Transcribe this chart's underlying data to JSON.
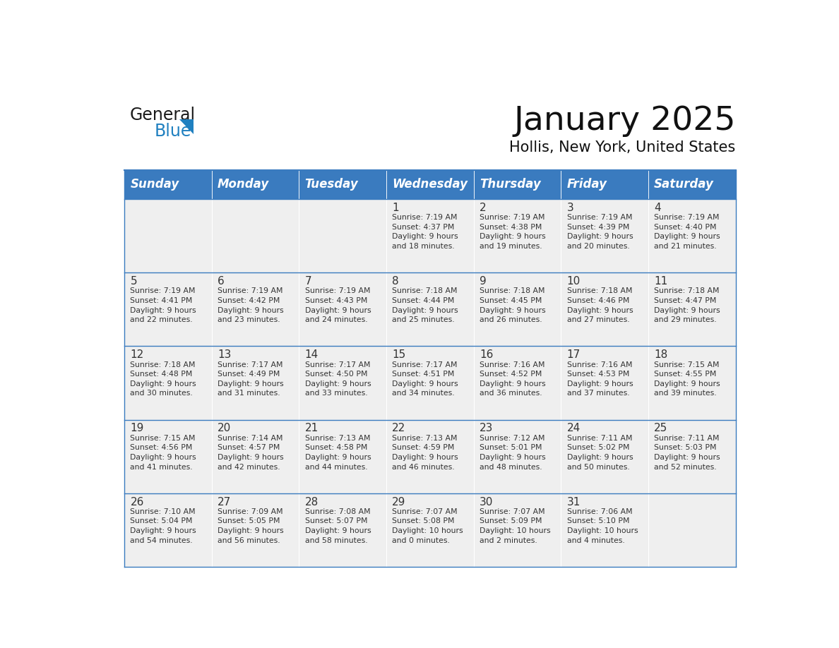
{
  "title": "January 2025",
  "subtitle": "Hollis, New York, United States",
  "header_bg": "#3a7bbf",
  "header_text_color": "#ffffff",
  "cell_bg_light": "#efefef",
  "text_color": "#333333",
  "line_color": "#3a7bbf",
  "days_of_week": [
    "Sunday",
    "Monday",
    "Tuesday",
    "Wednesday",
    "Thursday",
    "Friday",
    "Saturday"
  ],
  "calendar": [
    [
      {
        "day": "",
        "info": ""
      },
      {
        "day": "",
        "info": ""
      },
      {
        "day": "",
        "info": ""
      },
      {
        "day": "1",
        "info": "Sunrise: 7:19 AM\nSunset: 4:37 PM\nDaylight: 9 hours\nand 18 minutes."
      },
      {
        "day": "2",
        "info": "Sunrise: 7:19 AM\nSunset: 4:38 PM\nDaylight: 9 hours\nand 19 minutes."
      },
      {
        "day": "3",
        "info": "Sunrise: 7:19 AM\nSunset: 4:39 PM\nDaylight: 9 hours\nand 20 minutes."
      },
      {
        "day": "4",
        "info": "Sunrise: 7:19 AM\nSunset: 4:40 PM\nDaylight: 9 hours\nand 21 minutes."
      }
    ],
    [
      {
        "day": "5",
        "info": "Sunrise: 7:19 AM\nSunset: 4:41 PM\nDaylight: 9 hours\nand 22 minutes."
      },
      {
        "day": "6",
        "info": "Sunrise: 7:19 AM\nSunset: 4:42 PM\nDaylight: 9 hours\nand 23 minutes."
      },
      {
        "day": "7",
        "info": "Sunrise: 7:19 AM\nSunset: 4:43 PM\nDaylight: 9 hours\nand 24 minutes."
      },
      {
        "day": "8",
        "info": "Sunrise: 7:18 AM\nSunset: 4:44 PM\nDaylight: 9 hours\nand 25 minutes."
      },
      {
        "day": "9",
        "info": "Sunrise: 7:18 AM\nSunset: 4:45 PM\nDaylight: 9 hours\nand 26 minutes."
      },
      {
        "day": "10",
        "info": "Sunrise: 7:18 AM\nSunset: 4:46 PM\nDaylight: 9 hours\nand 27 minutes."
      },
      {
        "day": "11",
        "info": "Sunrise: 7:18 AM\nSunset: 4:47 PM\nDaylight: 9 hours\nand 29 minutes."
      }
    ],
    [
      {
        "day": "12",
        "info": "Sunrise: 7:18 AM\nSunset: 4:48 PM\nDaylight: 9 hours\nand 30 minutes."
      },
      {
        "day": "13",
        "info": "Sunrise: 7:17 AM\nSunset: 4:49 PM\nDaylight: 9 hours\nand 31 minutes."
      },
      {
        "day": "14",
        "info": "Sunrise: 7:17 AM\nSunset: 4:50 PM\nDaylight: 9 hours\nand 33 minutes."
      },
      {
        "day": "15",
        "info": "Sunrise: 7:17 AM\nSunset: 4:51 PM\nDaylight: 9 hours\nand 34 minutes."
      },
      {
        "day": "16",
        "info": "Sunrise: 7:16 AM\nSunset: 4:52 PM\nDaylight: 9 hours\nand 36 minutes."
      },
      {
        "day": "17",
        "info": "Sunrise: 7:16 AM\nSunset: 4:53 PM\nDaylight: 9 hours\nand 37 minutes."
      },
      {
        "day": "18",
        "info": "Sunrise: 7:15 AM\nSunset: 4:55 PM\nDaylight: 9 hours\nand 39 minutes."
      }
    ],
    [
      {
        "day": "19",
        "info": "Sunrise: 7:15 AM\nSunset: 4:56 PM\nDaylight: 9 hours\nand 41 minutes."
      },
      {
        "day": "20",
        "info": "Sunrise: 7:14 AM\nSunset: 4:57 PM\nDaylight: 9 hours\nand 42 minutes."
      },
      {
        "day": "21",
        "info": "Sunrise: 7:13 AM\nSunset: 4:58 PM\nDaylight: 9 hours\nand 44 minutes."
      },
      {
        "day": "22",
        "info": "Sunrise: 7:13 AM\nSunset: 4:59 PM\nDaylight: 9 hours\nand 46 minutes."
      },
      {
        "day": "23",
        "info": "Sunrise: 7:12 AM\nSunset: 5:01 PM\nDaylight: 9 hours\nand 48 minutes."
      },
      {
        "day": "24",
        "info": "Sunrise: 7:11 AM\nSunset: 5:02 PM\nDaylight: 9 hours\nand 50 minutes."
      },
      {
        "day": "25",
        "info": "Sunrise: 7:11 AM\nSunset: 5:03 PM\nDaylight: 9 hours\nand 52 minutes."
      }
    ],
    [
      {
        "day": "26",
        "info": "Sunrise: 7:10 AM\nSunset: 5:04 PM\nDaylight: 9 hours\nand 54 minutes."
      },
      {
        "day": "27",
        "info": "Sunrise: 7:09 AM\nSunset: 5:05 PM\nDaylight: 9 hours\nand 56 minutes."
      },
      {
        "day": "28",
        "info": "Sunrise: 7:08 AM\nSunset: 5:07 PM\nDaylight: 9 hours\nand 58 minutes."
      },
      {
        "day": "29",
        "info": "Sunrise: 7:07 AM\nSunset: 5:08 PM\nDaylight: 10 hours\nand 0 minutes."
      },
      {
        "day": "30",
        "info": "Sunrise: 7:07 AM\nSunset: 5:09 PM\nDaylight: 10 hours\nand 2 minutes."
      },
      {
        "day": "31",
        "info": "Sunrise: 7:06 AM\nSunset: 5:10 PM\nDaylight: 10 hours\nand 4 minutes."
      },
      {
        "day": "",
        "info": ""
      }
    ]
  ],
  "logo_general_color": "#1a1a1a",
  "logo_blue_color": "#2080c0",
  "logo_triangle_color": "#2080c0",
  "title_fontsize": 34,
  "subtitle_fontsize": 15,
  "dow_fontsize": 12,
  "day_num_fontsize": 11,
  "info_fontsize": 7.8
}
